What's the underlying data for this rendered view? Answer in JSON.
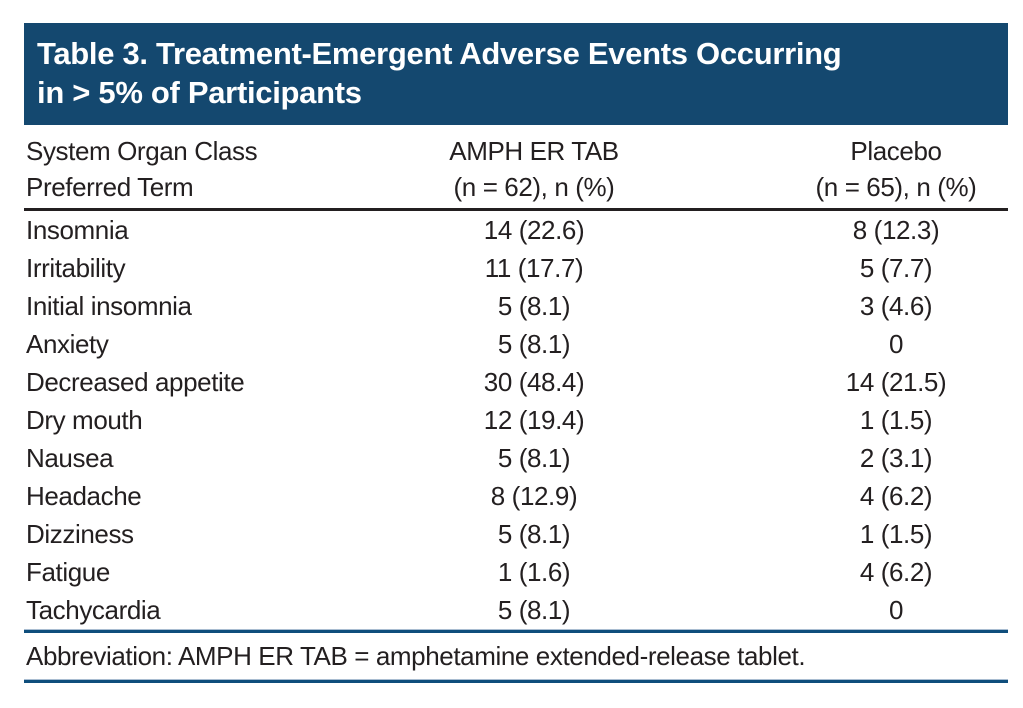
{
  "header_band": {
    "title_line1": "Table 3. Treatment-Emergent Adverse Events Occurring",
    "title_line2": "in > 5% of Participants"
  },
  "column_headers": {
    "col1_line1": "System Organ Class",
    "col1_line2": "Preferred Term",
    "col2_line1": "AMPH ER TAB",
    "col2_line2": "(n = 62), n (%)",
    "col3_line1": "Placebo",
    "col3_line2": "(n = 65), n (%)"
  },
  "footnote": {
    "text": "Abbreviation: AMPH ER TAB = amphetamine extended-release tablet."
  },
  "colors": {
    "band": "#14486F",
    "text": "#231F20",
    "rule_black": "#231F20",
    "rule_blue": "#0F4E7C"
  },
  "chart_data": {
    "type": "table",
    "title": "Table 3. Treatment-Emergent Adverse Events Occurring in > 5% of Participants",
    "columns": [
      "System Organ Class Preferred Term",
      "AMPH ER TAB (n = 62), n (%)",
      "Placebo (n = 65), n (%)"
    ],
    "rows": [
      [
        "Insomnia",
        "14 (22.6)",
        "8 (12.3)"
      ],
      [
        "Irritability",
        "11 (17.7)",
        "5 (7.7)"
      ],
      [
        "Initial insomnia",
        "5 (8.1)",
        "3 (4.6)"
      ],
      [
        "Anxiety",
        "5 (8.1)",
        "0"
      ],
      [
        "Decreased appetite",
        "30 (48.4)",
        "14 (21.5)"
      ],
      [
        "Dry mouth",
        "12 (19.4)",
        "1 (1.5)"
      ],
      [
        "Nausea",
        "5 (8.1)",
        "2 (3.1)"
      ],
      [
        "Headache",
        "8 (12.9)",
        "4 (6.2)"
      ],
      [
        "Dizziness",
        "5 (8.1)",
        "1 (1.5)"
      ],
      [
        "Fatigue",
        "1 (1.6)",
        "4 (6.2)"
      ],
      [
        "Tachycardia",
        "5 (8.1)",
        "0"
      ]
    ],
    "footnote": "Abbreviation: AMPH ER TAB = amphetamine extended-release tablet.",
    "group_sizes": {
      "amph_er_tab_n": 62,
      "placebo_n": 65
    }
  }
}
